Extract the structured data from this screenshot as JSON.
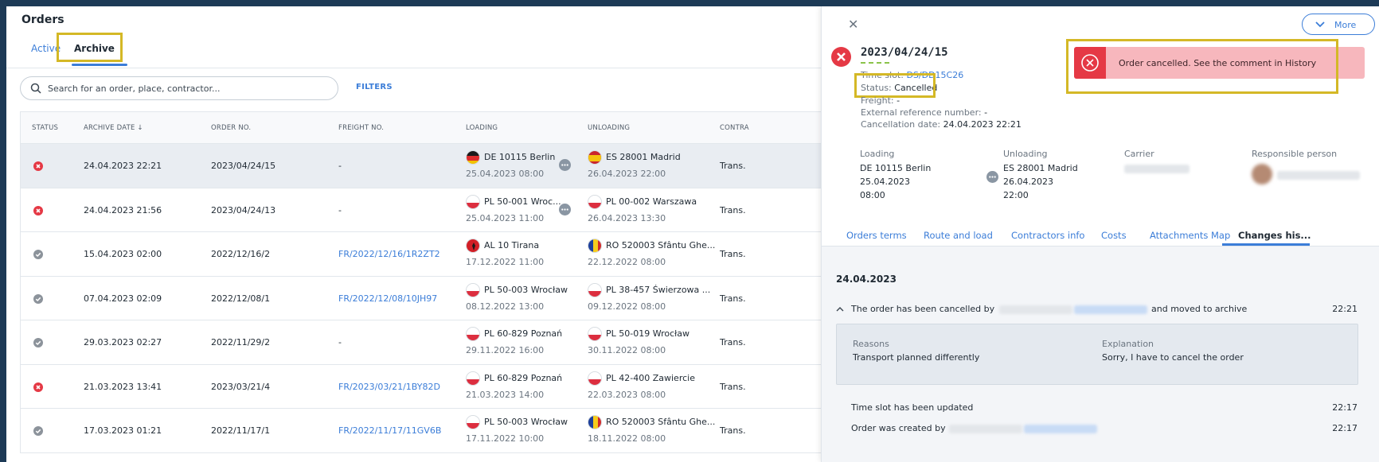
{
  "header": {
    "title": "Orders"
  },
  "tabs": [
    {
      "label": "Active"
    },
    {
      "label": "Archive"
    }
  ],
  "search": {
    "placeholder": "Search for an order, place, contractor..."
  },
  "filters_label": "FILTERS",
  "table": {
    "columns": [
      "STATUS",
      "ARCHIVE DATE ↓",
      "ORDER NO.",
      "FREIGHT NO.",
      "LOADING",
      "UNLOADING",
      "CONTRA"
    ],
    "rows": [
      {
        "status": "cancelled",
        "archive_date": "24.04.2023 22:21",
        "order_no": "2023/04/24/15",
        "freight_no": "-",
        "freight_link": false,
        "loading": "DE 10115 Berlin",
        "loading_date": "25.04.2023 08:00",
        "loading_flag": "de",
        "unloading": "ES 28001 Madrid",
        "unloading_date": "26.04.2023 22:00",
        "unloading_flag": "es",
        "contractor": "Trans.",
        "more": true,
        "selected": true
      },
      {
        "status": "cancelled",
        "archive_date": "24.04.2023 21:56",
        "order_no": "2023/04/24/13",
        "freight_no": "-",
        "freight_link": false,
        "loading": "PL 50-001 Wroc...",
        "loading_date": "25.04.2023 11:00",
        "loading_flag": "pl",
        "unloading": "PL 00-002 Warszawa",
        "unloading_date": "26.04.2023 13:30",
        "unloading_flag": "pl",
        "contractor": "Trans.",
        "more": true,
        "selected": false
      },
      {
        "status": "done",
        "archive_date": "15.04.2023 02:00",
        "order_no": "2022/12/16/2",
        "freight_no": "FR/2022/12/16/1R2ZT2",
        "freight_link": true,
        "loading": "AL 10 Tirana",
        "loading_date": "17.12.2022 11:00",
        "loading_flag": "al",
        "unloading": "RO 520003 Sfântu Ghe...",
        "unloading_date": "22.12.2022 08:00",
        "unloading_flag": "ro",
        "contractor": "Trans.",
        "more": false,
        "selected": false
      },
      {
        "status": "done",
        "archive_date": "07.04.2023 02:09",
        "order_no": "2022/12/08/1",
        "freight_no": "FR/2022/12/08/10JH97",
        "freight_link": true,
        "loading": "PL 50-003 Wrocław",
        "loading_date": "08.12.2022 13:00",
        "loading_flag": "pl",
        "unloading": "PL 38-457 Świerzowa ...",
        "unloading_date": "09.12.2022 08:00",
        "unloading_flag": "pl",
        "contractor": "Trans.",
        "more": false,
        "selected": false
      },
      {
        "status": "done",
        "archive_date": "29.03.2023 02:27",
        "order_no": "2022/11/29/2",
        "freight_no": "-",
        "freight_link": false,
        "loading": "PL 60-829 Poznań",
        "loading_date": "29.11.2022 16:00",
        "loading_flag": "pl",
        "unloading": "PL 50-019 Wrocław",
        "unloading_date": "30.11.2022 08:00",
        "unloading_flag": "pl",
        "contractor": "Trans.",
        "more": false,
        "selected": false
      },
      {
        "status": "cancelled",
        "archive_date": "21.03.2023 13:41",
        "order_no": "2023/03/21/4",
        "freight_no": "FR/2023/03/21/1BY82D",
        "freight_link": true,
        "loading": "PL 60-829 Poznań",
        "loading_date": "21.03.2023 14:00",
        "loading_flag": "pl",
        "unloading": "PL 42-400 Zawiercie",
        "unloading_date": "22.03.2023 08:00",
        "unloading_flag": "pl",
        "contractor": "Trans.",
        "more": false,
        "selected": false
      },
      {
        "status": "done",
        "archive_date": "17.03.2023 01:21",
        "order_no": "2022/11/17/1",
        "freight_no": "FR/2022/11/17/11GV6B",
        "freight_link": true,
        "loading": "PL 50-003 Wrocław",
        "loading_date": "17.11.2022 10:00",
        "loading_flag": "pl",
        "unloading": "RO 520003 Sfântu Ghe...",
        "unloading_date": "18.11.2022 08:00",
        "unloading_flag": "ro",
        "contractor": "Trans.",
        "more": false,
        "selected": false
      }
    ]
  },
  "panel": {
    "more_label": "More",
    "order_no": "2023/04/24/15",
    "time_slot_label": "Time slot:",
    "time_slot_value": "DS/DD15C26",
    "status_label": "Status:",
    "status_value": "Cancelled",
    "freight_label": "Freight:",
    "freight_value": "-",
    "ext_ref_label": "External reference number:",
    "ext_ref_value": "-",
    "cancel_date_label": "Cancellation date:",
    "cancel_date_value": "24.04.2023 22:21",
    "alert_text": "Order cancelled. See the comment in History",
    "loading_label": "Loading",
    "loading_city": "DE 10115 Berlin",
    "loading_date": "25.04.2023",
    "loading_time": "08:00",
    "unloading_label": "Unloading",
    "unloading_city": "ES 28001 Madrid",
    "unloading_date": "26.04.2023",
    "unloading_time": "22:00",
    "carrier_label": "Carrier",
    "responsible_label": "Responsible person",
    "tabs": [
      "Orders terms",
      "Route and load",
      "Contractors info",
      "Costs",
      "Attachments",
      "Map",
      "Changes his..."
    ],
    "history": {
      "date": "24.04.2023",
      "cancel_prefix": "The order has been cancelled by",
      "cancel_suffix": "and moved to archive",
      "cancel_time": "22:21",
      "reasons_label": "Reasons",
      "reasons_value": "Transport planned differently",
      "explanation_label": "Explanation",
      "explanation_value": "Sorry, I have to cancel the order",
      "timeslot_text": "Time slot has been updated",
      "timeslot_time": "22:17",
      "created_prefix": "Order was created by",
      "created_time": "22:17"
    }
  },
  "colors": {
    "accent": "#3b7dd8",
    "cancel": "#e53945",
    "highlight": "#d4b826",
    "alert_bg": "#f7b7bd"
  }
}
